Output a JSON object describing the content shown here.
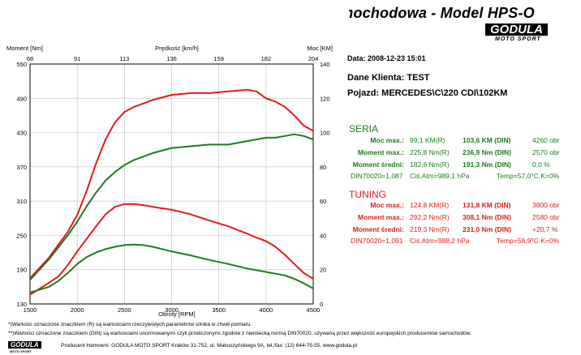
{
  "header": {
    "title": "Hamownia Samochodowa   -   Model HPS-O",
    "logo_main": "GODULA",
    "logo_sub": "MOTO SPORT"
  },
  "info": {
    "date": "Data: 2008-12-23  15:01",
    "client": "Dane Klienta: TEST",
    "vehicle": "Pojazd: MERCEDES\\C\\220 CDI\\102KM"
  },
  "seria": {
    "title": "SERIA",
    "rows": [
      {
        "label": "Moc max.:",
        "val1": "99,1 KM(R)",
        "val2": "103,6 KM (DIN)",
        "val3": "4260 obr"
      },
      {
        "label": "Moment max.:",
        "val1": "225,8 Nm(R)",
        "val2": "236,9 Nm (DIN)",
        "val3": "2570 obr"
      },
      {
        "label": "Moment średni:",
        "val1": "182,6 Nm(R)",
        "val2": "191,3 Nm (DIN)",
        "val3": "0,0 %"
      }
    ],
    "din": "DIN70020=1,087",
    "atm": "Ciś.Atm=989,1 hPa",
    "temp": "Temp=57,0°C  K=0%"
  },
  "tuning": {
    "title": "TUNING",
    "rows": [
      {
        "label": "Moc max.:",
        "val1": "124,8 KM(R)",
        "val2": "131,8 KM (DIN)",
        "val3": "3800 obr"
      },
      {
        "label": "Moment max.:",
        "val1": "292,2 Nm(R)",
        "val2": "308,1 Nm (DIN)",
        "val3": "2580 obr"
      },
      {
        "label": "Moment średni:",
        "val1": "219,3 Nm(R)",
        "val2": "231,0 Nm (DIN)",
        "val3": "+20,7 %"
      }
    ],
    "din": "DIN70020=1,091",
    "atm": "Ciś.Atm=988,2 hPa",
    "temp": "Temp=58,9°C  K=0%"
  },
  "footer": {
    "line1": "*)Wartości oznaczone znaczkiem (R) są wartościami rzeczywistych parametrów silnika w chwili pomiaru.",
    "line2": "**)Wartości oznaczone znaczkiem (DIN) są wartościami unormowanymi czyli przeliczonymi zgodnie z niemiecką normą DIN70020, używaną przez większość europejskich producentów samochodów.",
    "logo_main": "GODULA",
    "logo_sub": "MOTO SPORT",
    "line3": "Producent Hamowni: GODULA MOTO SPORT Kraków 31-752, ul. Makuszyńskiego 9A, tel./fax: (12) 644-75-55, www.godula.pl"
  },
  "colors": {
    "seria": "#1f7a1f",
    "tuning": "#e21b1b"
  },
  "chart_data": {
    "type": "line",
    "title": "",
    "xlabel": "Obroty [RPM]",
    "ylabel_left": "Moment [Nm]",
    "ylabel_right": "Moc [KM]",
    "top_axis_label": "Prędkość [km/h]",
    "xlim": [
      1500,
      4500
    ],
    "ylim_left": [
      130,
      550
    ],
    "ylim_right": [
      0,
      140
    ],
    "x_ticks": [
      1500,
      2000,
      2500,
      3000,
      3500,
      4000,
      4500
    ],
    "y_left_ticks": [
      130,
      190,
      250,
      310,
      370,
      430,
      490,
      550
    ],
    "y_right_ticks": [
      0,
      20,
      40,
      60,
      80,
      100,
      120,
      140
    ],
    "top_ticks": [
      68,
      91,
      113,
      136,
      159,
      182,
      204
    ],
    "grid": true,
    "series": [
      {
        "name": "TUNING",
        "quantity": "Moc [KM]",
        "axis": "right",
        "color": "#e21b1b",
        "x": [
          1500,
          1700,
          1900,
          2000,
          2100,
          2200,
          2300,
          2400,
          2500,
          2600,
          2800,
          3000,
          3200,
          3400,
          3600,
          3800,
          3900,
          4000,
          4100,
          4200,
          4300,
          4400,
          4500
        ],
        "y": [
          15,
          27,
          42,
          52,
          66,
          82,
          96,
          106,
          112,
          115,
          119,
          122,
          123,
          123,
          124,
          125,
          124,
          120,
          118,
          115,
          110,
          104,
          101
        ]
      },
      {
        "name": "SERIA",
        "quantity": "Moc [KM]",
        "axis": "right",
        "color": "#1f7a1f",
        "x": [
          1500,
          1700,
          1900,
          2000,
          2100,
          2200,
          2300,
          2400,
          2500,
          2600,
          2800,
          3000,
          3200,
          3400,
          3600,
          3800,
          4000,
          4100,
          4200,
          4300,
          4400,
          4500
        ],
        "y": [
          14,
          26,
          40,
          48,
          57,
          65,
          72,
          77,
          81,
          84,
          88,
          91,
          92,
          93,
          93,
          95,
          97,
          97,
          98,
          99,
          98,
          96
        ]
      },
      {
        "name": "TUNING",
        "quantity": "Moment [Nm]",
        "axis": "left",
        "color": "#e21b1b",
        "x": [
          1500,
          1700,
          1800,
          1900,
          2000,
          2100,
          2200,
          2300,
          2400,
          2500,
          2600,
          2700,
          2800,
          3000,
          3200,
          3400,
          3600,
          3800,
          3900,
          4000,
          4100,
          4200,
          4300,
          4400,
          4500
        ],
        "y": [
          146,
          167,
          178,
          198,
          222,
          244,
          266,
          287,
          300,
          305,
          305,
          303,
          300,
          295,
          287,
          276,
          266,
          253,
          246,
          240,
          230,
          216,
          200,
          184,
          174
        ]
      },
      {
        "name": "SERIA",
        "quantity": "Moment [Nm]",
        "axis": "left",
        "color": "#1f7a1f",
        "x": [
          1500,
          1700,
          1800,
          1900,
          2000,
          2100,
          2200,
          2300,
          2400,
          2500,
          2600,
          2700,
          2800,
          3000,
          3200,
          3400,
          3600,
          3800,
          4000,
          4200,
          4300,
          4400,
          4500
        ],
        "y": [
          150,
          160,
          170,
          184,
          200,
          212,
          220,
          226,
          230,
          233,
          234,
          233,
          230,
          222,
          215,
          207,
          200,
          192,
          186,
          180,
          174,
          166,
          157
        ]
      }
    ]
  }
}
